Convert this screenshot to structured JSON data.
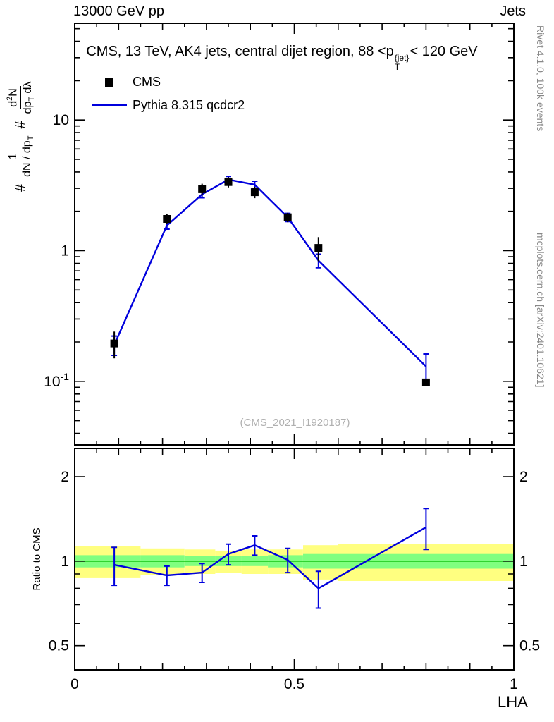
{
  "header": {
    "left": "13000 GeV pp",
    "right": "Jets"
  },
  "title": {
    "pre": "CMS, 13 TeV, AK4 jets, central dijet region, 88 <p",
    "sup": "{jet}",
    "sub": "T",
    "post": "< 120 GeV"
  },
  "legend": {
    "cms": "CMS",
    "mc": "Pythia 8.315 qcdcr2"
  },
  "watermark": "(CMS_2021_I1920187)",
  "sidenotes": {
    "top": "Rivet 4.1.0, 100k events",
    "bottom": "mcplots.cern.ch [arXiv:2401.10621]"
  },
  "ylabel": {
    "hash1": "#",
    "f1num": "1",
    "f1den_a": "dN / dp",
    "f1den_sub": "T",
    "hash2": "#",
    "f2num_a": "d",
    "f2num_sup": "2",
    "f2num_b": "N",
    "f2den_a": "dp",
    "f2den_sub": "T",
    "f2den_b": " dλ"
  },
  "ratio_ylabel": "Ratio to CMS",
  "xlabel": "LHA",
  "chart_data": {
    "type": "line",
    "title": "CMS, 13 TeV, AK4 jets, central dijet region, 88 < pT^jet < 120 GeV",
    "xlabel": "LHA",
    "ylabel": "1/(dN/dpT) d2N/(dpT dLambda)",
    "x": [
      0.09,
      0.21,
      0.29,
      0.35,
      0.41,
      0.485,
      0.555,
      0.8
    ],
    "series": [
      {
        "name": "CMS",
        "style": "marker-square",
        "color": "#000000",
        "values": [
          0.195,
          1.75,
          2.95,
          3.35,
          2.8,
          1.8,
          1.05,
          0.098
        ],
        "errors": [
          0.045,
          0.15,
          0.3,
          0.3,
          0.28,
          0.15,
          0.22,
          0.006
        ]
      },
      {
        "name": "Pythia 8.315 qcdcr2",
        "style": "line",
        "color": "#0000dd",
        "values": [
          0.19,
          1.56,
          2.7,
          3.5,
          3.2,
          1.8,
          0.84,
          0.13
        ],
        "errors": [
          0.032,
          0.1,
          0.16,
          0.2,
          0.2,
          0.13,
          0.1,
          0.032
        ]
      }
    ],
    "ratio": {
      "name": "Ratio to CMS",
      "values": [
        0.97,
        0.89,
        0.91,
        1.06,
        1.14,
        1.01,
        0.8,
        1.32
      ],
      "errors": [
        0.15,
        0.07,
        0.07,
        0.09,
        0.09,
        0.1,
        0.12,
        0.22
      ]
    },
    "bands": {
      "bin_edges": [
        0,
        0.15,
        0.25,
        0.32,
        0.38,
        0.44,
        0.52,
        0.6,
        1.0
      ],
      "yellow_lo": [
        0.87,
        0.89,
        0.9,
        0.91,
        0.9,
        0.9,
        0.86,
        0.85
      ],
      "yellow_hi": [
        1.13,
        1.11,
        1.1,
        1.09,
        1.1,
        1.1,
        1.14,
        1.15
      ],
      "green_lo": [
        0.95,
        0.95,
        0.96,
        0.96,
        0.96,
        0.95,
        0.94,
        0.94
      ],
      "green_hi": [
        1.05,
        1.05,
        1.04,
        1.04,
        1.04,
        1.05,
        1.06,
        1.06
      ],
      "center_line": 1.0,
      "yellow_color": "#ffff80",
      "green_color": "#80ff80",
      "line_color": "#00bb00"
    },
    "axes": {
      "x": {
        "min": 0,
        "max": 1,
        "major_ticks": [
          0,
          0.5,
          1
        ],
        "tick_labels": [
          "0",
          "0.5",
          "1"
        ]
      },
      "y_main": {
        "scale": "log",
        "min": 0.0326,
        "max": 55,
        "ticks": [
          {
            "v": 10,
            "label": "10"
          },
          {
            "v": 1,
            "label": "1"
          },
          {
            "v": 0.1,
            "label": "10",
            "sup": "-1"
          }
        ]
      },
      "y_ratio": {
        "scale": "log",
        "min": 0.41,
        "max": 2.52,
        "ticks": [
          {
            "v": 2,
            "label": "2"
          },
          {
            "v": 1,
            "label": "1"
          },
          {
            "v": 0.5,
            "label": "0.5"
          }
        ]
      }
    }
  }
}
